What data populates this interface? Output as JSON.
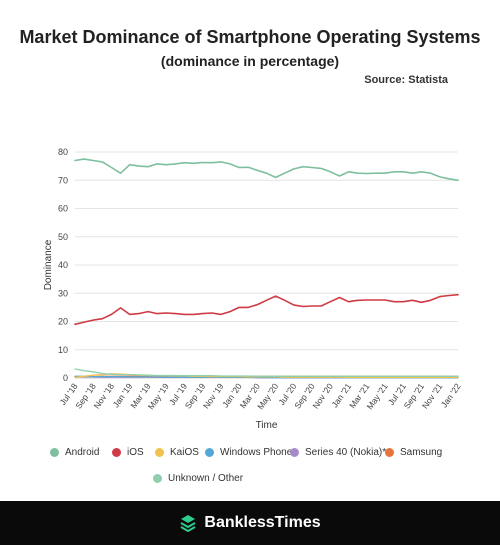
{
  "header": {
    "title": "Market Dominance of Smartphone Operating Systems",
    "subtitle": "(dominance in percentage)",
    "source": "Source: Statista"
  },
  "chart_data": {
    "type": "line",
    "xlabel": "Time",
    "ylabel": "Dominance",
    "ylim": [
      0,
      80
    ],
    "yticks": [
      0,
      10,
      20,
      30,
      40,
      50,
      60,
      70,
      80
    ],
    "grid": true,
    "legend_position": "bottom",
    "x": [
      "Jul '18",
      "Aug '18",
      "Sep '18",
      "Oct '18",
      "Nov '18",
      "Dec '18",
      "Jan '19",
      "Feb '19",
      "Mar '19",
      "Apr '19",
      "May '19",
      "Jun '19",
      "Jul '19",
      "Aug '19",
      "Sep '19",
      "Oct '19",
      "Nov '19",
      "Dec '19",
      "Jan '20",
      "Feb '20",
      "Mar '20",
      "Apr '20",
      "May '20",
      "Jun '20",
      "Jul '20",
      "Aug '20",
      "Sep '20",
      "Oct '20",
      "Nov '20",
      "Dec '20",
      "Jan '21",
      "Feb '21",
      "Mar '21",
      "Apr '21",
      "May '21",
      "Jun '21",
      "Jul '21",
      "Aug '21",
      "Sep '21",
      "Oct '21",
      "Nov '21",
      "Dec '21",
      "Jan '22"
    ],
    "xtick_labels": [
      "Jul '18",
      "Sep '18",
      "Nov '18",
      "Jan '19",
      "Mar '19",
      "May '19",
      "Jul '19",
      "Sep '19",
      "Nov '19",
      "Jan '20",
      "Mar '20",
      "May '20",
      "Jul '20",
      "Sep '20",
      "Nov '20",
      "Jan '21",
      "Mar '21",
      "May '21",
      "Jul '21",
      "Sep '21",
      "Nov '21",
      "Jan '22"
    ],
    "series": [
      {
        "name": "Android",
        "color": "#7dbf9e",
        "values": [
          77.0,
          77.5,
          77.0,
          76.5,
          74.5,
          72.5,
          75.5,
          75.0,
          74.8,
          75.8,
          75.5,
          75.8,
          76.2,
          76.0,
          76.3,
          76.2,
          76.5,
          75.8,
          74.5,
          74.6,
          73.5,
          72.5,
          71.0,
          72.5,
          74.0,
          74.8,
          74.5,
          74.2,
          73.0,
          71.5,
          73.0,
          72.5,
          72.4,
          72.5,
          72.5,
          73.0,
          73.0,
          72.5,
          73.0,
          72.5,
          71.2,
          70.5,
          70.0
        ]
      },
      {
        "name": "iOS",
        "color": "#cf3a44",
        "values": [
          19.0,
          19.8,
          20.5,
          21.0,
          22.5,
          24.8,
          22.5,
          22.8,
          23.5,
          22.8,
          23.0,
          22.8,
          22.5,
          22.5,
          22.8,
          23.0,
          22.5,
          23.5,
          25.0,
          25.0,
          26.0,
          27.5,
          29.0,
          27.5,
          25.8,
          25.3,
          25.5,
          25.5,
          27.0,
          28.5,
          27.0,
          27.5,
          27.6,
          27.6,
          27.6,
          27.0,
          27.0,
          27.5,
          26.8,
          27.5,
          28.8,
          29.2,
          29.5
        ]
      },
      {
        "name": "KaiOS",
        "color": "#f2c14e",
        "values": [
          0.2,
          0.6,
          1.0,
          1.2,
          1.5,
          1.4,
          1.2,
          1.0,
          0.9,
          0.8,
          0.8,
          0.7,
          0.7,
          0.6,
          0.6,
          0.5,
          0.5,
          0.5,
          0.5,
          0.4,
          0.4,
          0.4,
          0.4,
          0.3,
          0.3,
          0.3,
          0.3,
          0.3,
          0.3,
          0.3,
          0.2,
          0.2,
          0.2,
          0.2,
          0.2,
          0.2,
          0.2,
          0.2,
          0.2,
          0.2,
          0.2,
          0.2,
          0.2
        ]
      },
      {
        "name": "Windows Phone",
        "color": "#57a7d6",
        "values": [
          0.6,
          0.6,
          0.5,
          0.5,
          0.5,
          0.5,
          0.4,
          0.4,
          0.4,
          0.4,
          0.3,
          0.3,
          0.3,
          0.3,
          0.3,
          0.3,
          0.2,
          0.2,
          0.2,
          0.2,
          0.2,
          0.1,
          0.1,
          0.1,
          0.1,
          0.1,
          0.1,
          0.1,
          0.1,
          0.1,
          0.1,
          0.1,
          0.1,
          0.1,
          0.1,
          0.1,
          0.1,
          0.1,
          0.1,
          0.1,
          0.1,
          0.1,
          0.1
        ]
      },
      {
        "name": "Series 40 (Nokia)*",
        "color": "#a68bc9",
        "values": [
          0.4,
          0.4,
          0.4,
          0.3,
          0.3,
          0.3,
          0.3,
          0.3,
          0.3,
          0.2,
          0.2,
          0.2,
          0.2,
          0.2,
          0.2,
          0.2,
          0.2,
          0.2,
          0.2,
          0.2,
          0.1,
          0.1,
          0.1,
          0.1,
          0.1,
          0.1,
          0.1,
          0.1,
          0.1,
          0.1,
          0.1,
          0.1,
          0.1,
          0.1,
          0.1,
          0.1,
          0.1,
          0.1,
          0.1,
          0.1,
          0.1,
          0.1,
          0.1
        ]
      },
      {
        "name": "Samsung",
        "color": "#e8743b",
        "values": [
          0.5,
          0.5,
          0.5,
          0.6,
          0.6,
          0.6,
          0.6,
          0.6,
          0.6,
          0.6,
          0.6,
          0.6,
          0.6,
          0.6,
          0.6,
          0.6,
          0.6,
          0.6,
          0.6,
          0.6,
          0.6,
          0.6,
          0.6,
          0.6,
          0.6,
          0.6,
          0.6,
          0.6,
          0.6,
          0.6,
          0.6,
          0.6,
          0.6,
          0.6,
          0.6,
          0.6,
          0.6,
          0.6,
          0.6,
          0.6,
          0.6,
          0.6,
          0.6
        ]
      },
      {
        "name": "Unknown / Other",
        "color": "#8fcfae",
        "values": [
          3.2,
          2.6,
          2.2,
          1.6,
          1.3,
          1.2,
          1.2,
          1.1,
          1.0,
          0.9,
          0.9,
          0.9,
          0.8,
          0.8,
          0.8,
          0.8,
          0.7,
          0.7,
          0.7,
          0.7,
          0.6,
          0.6,
          0.6,
          0.6,
          0.6,
          0.6,
          0.6,
          0.6,
          0.6,
          0.6,
          0.6,
          0.6,
          0.6,
          0.6,
          0.6,
          0.6,
          0.6,
          0.6,
          0.6,
          0.6,
          0.6,
          0.6,
          0.6
        ]
      }
    ]
  },
  "footer": {
    "brand_name": "BanklessTimes",
    "background": "#0a0a0a",
    "brand_color": "#2ecc8f"
  }
}
